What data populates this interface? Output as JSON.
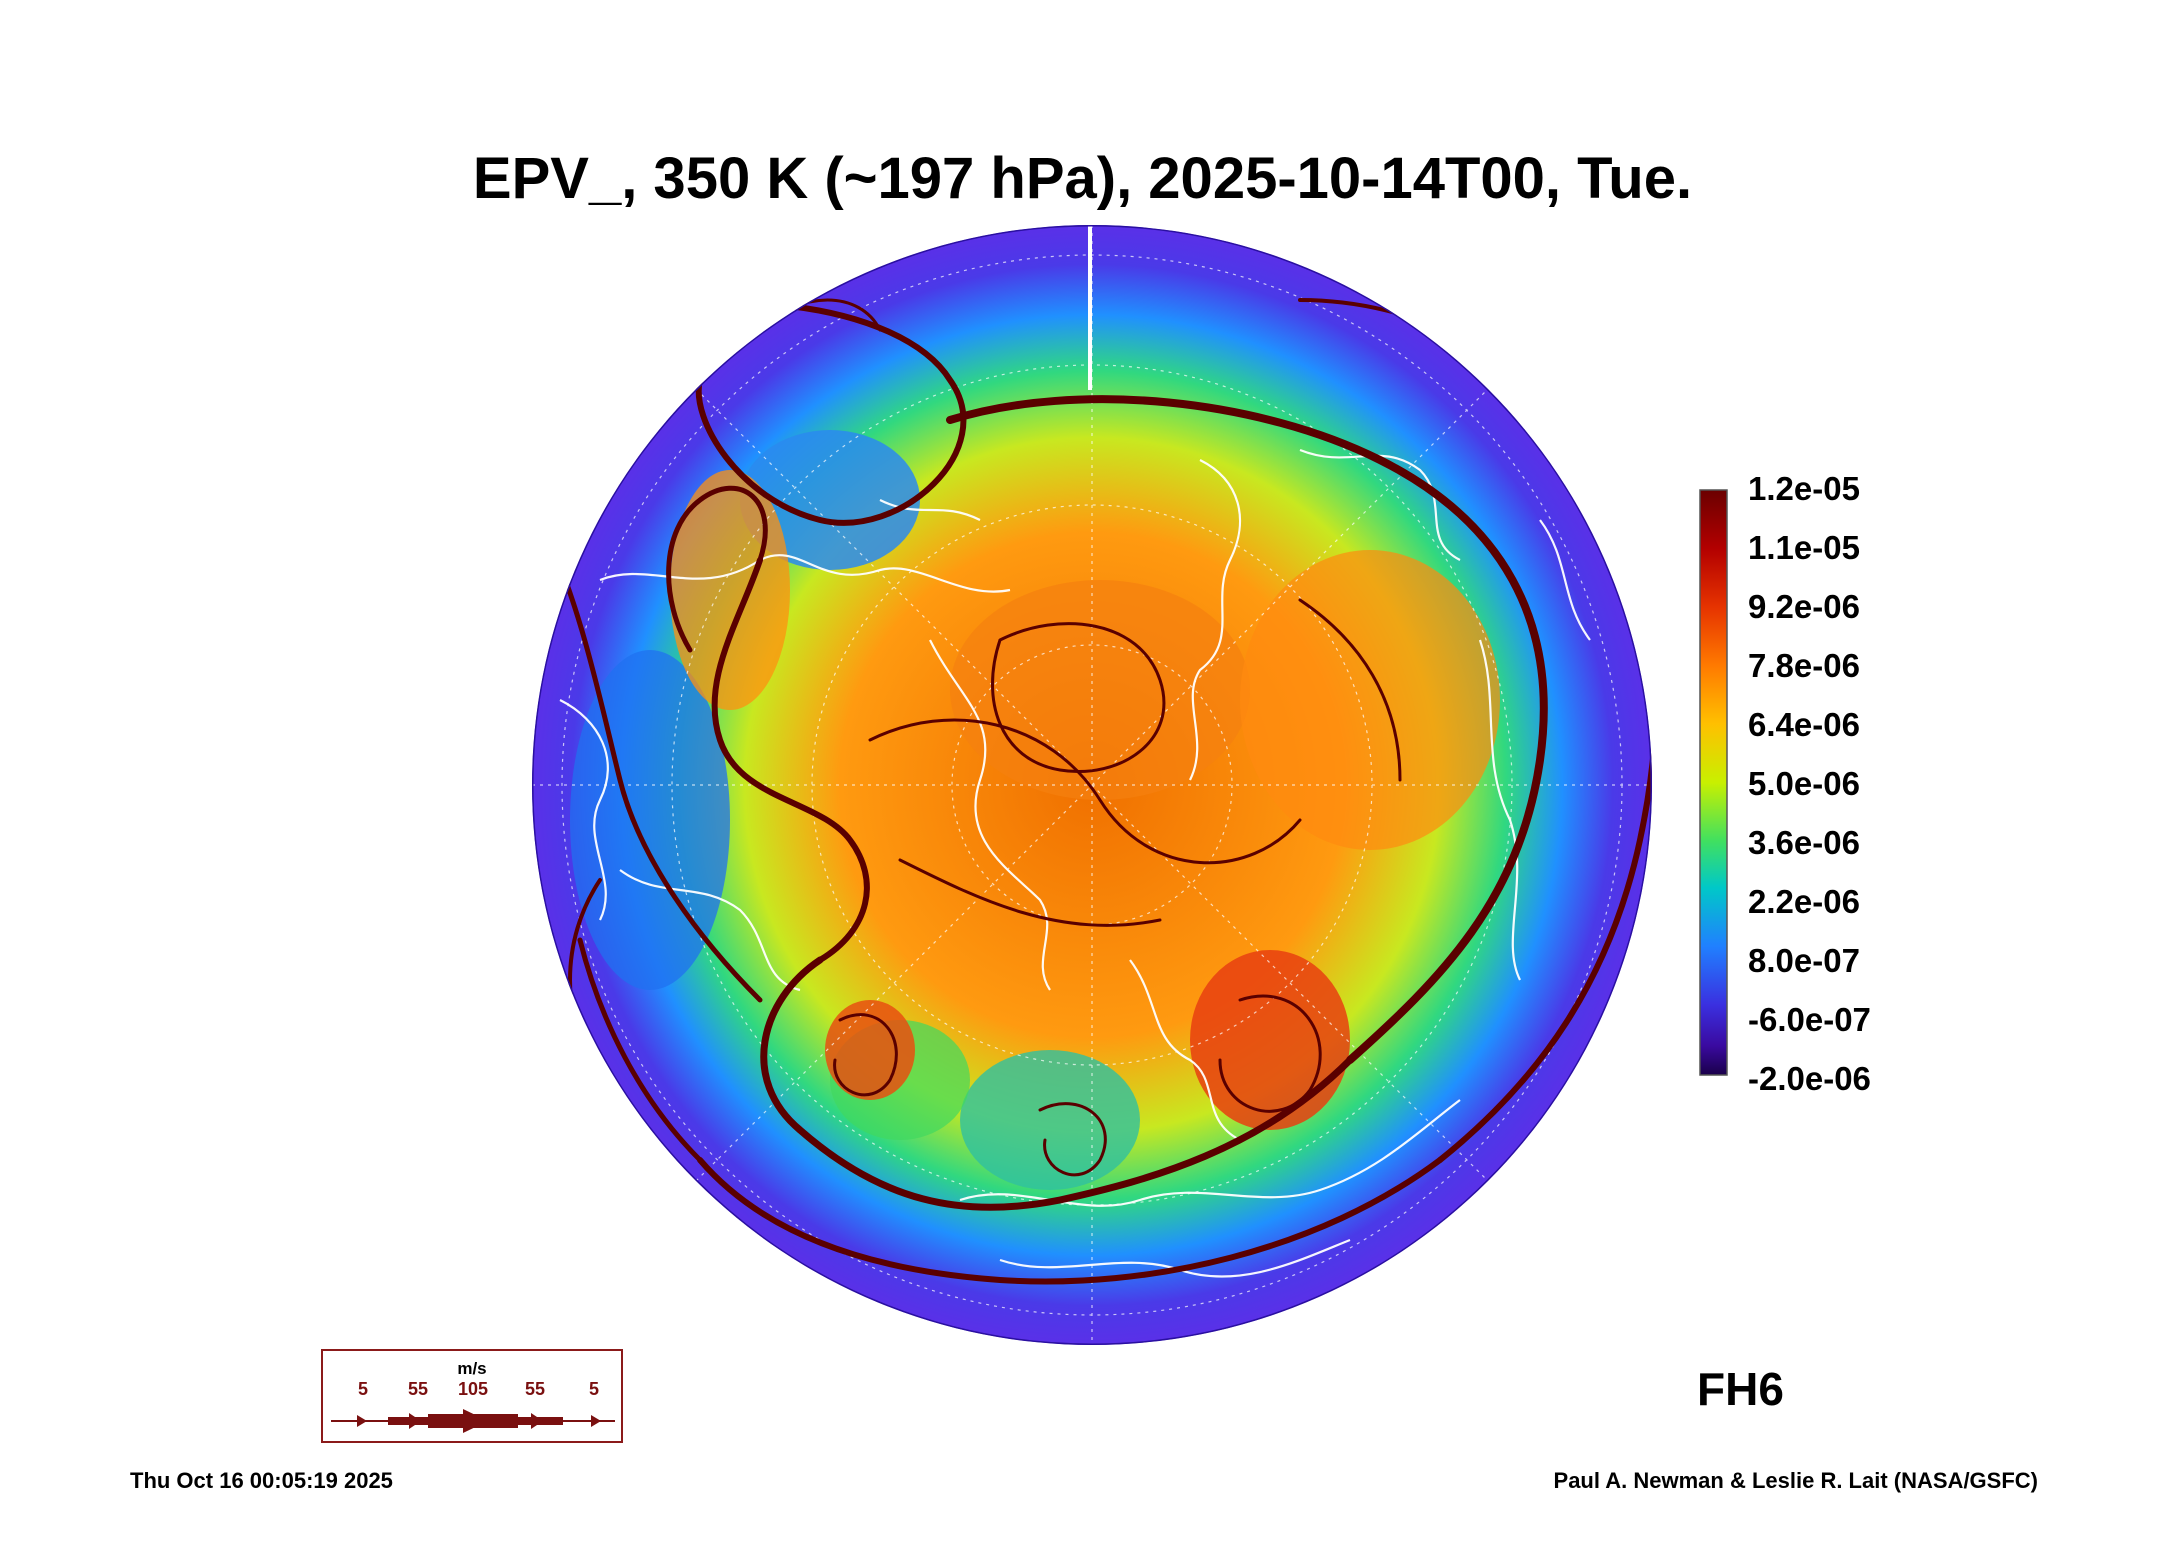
{
  "title": "EPV_, 350 K (~197 hPa), 2025-10-14T00, Tue.",
  "colorbar": {
    "labels": [
      "1.2e-05",
      "1.1e-05",
      "9.2e-06",
      "7.8e-06",
      "6.4e-06",
      "5.0e-06",
      "3.6e-06",
      "2.2e-06",
      "8.0e-07",
      "-6.0e-07",
      "-2.0e-06"
    ],
    "colors": [
      "#6b0000",
      "#b30000",
      "#e63300",
      "#ff7a00",
      "#ffc000",
      "#c8f000",
      "#40e060",
      "#00c8c8",
      "#2080ff",
      "#3a30e0",
      "#3a0aa0",
      "#1a004a"
    ]
  },
  "legend": {
    "unit": "m/s",
    "ticks": [
      "5",
      "55",
      "105",
      "55",
      "5"
    ]
  },
  "forecast_hour": "FH6",
  "footer": {
    "timestamp": "Thu Oct 16 00:05:19 2025",
    "credit": "Paul A. Newman & Leslie R. Lait (NASA/GSFC)"
  },
  "map": {
    "projection": "north polar stereographic",
    "field": "EPV",
    "overlay": "wind streamlines and coastlines"
  }
}
